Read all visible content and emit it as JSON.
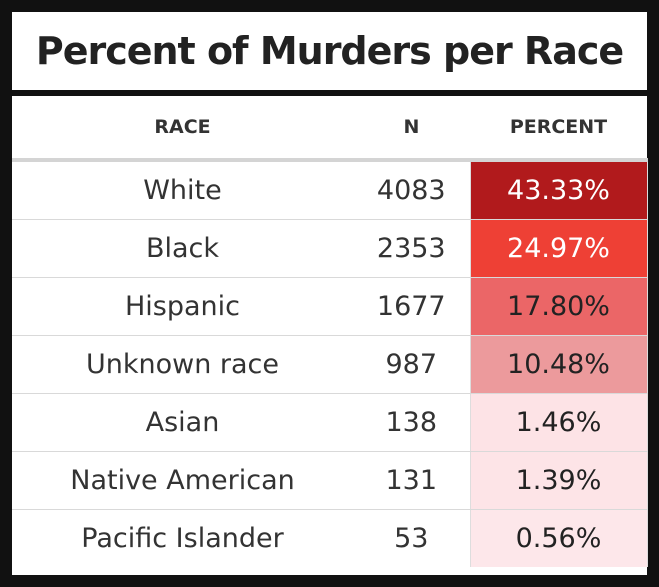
{
  "chart_data": {
    "type": "table",
    "title": "Percent of Murders per Race",
    "columns": [
      "RACE",
      "N",
      "PERCENT"
    ],
    "rows": [
      {
        "race": "White",
        "n": 4083,
        "percent": "43.33%",
        "percent_value": 43.33,
        "fill": "#b11a1c",
        "text_color": "#ffffff"
      },
      {
        "race": "Black",
        "n": 2353,
        "percent": "24.97%",
        "percent_value": 24.97,
        "fill": "#ee4035",
        "text_color": "#ffffff"
      },
      {
        "race": "Hispanic",
        "n": 1677,
        "percent": "17.80%",
        "percent_value": 17.8,
        "fill": "#eb6667",
        "text_color": "#222222"
      },
      {
        "race": "Unknown race",
        "n": 987,
        "percent": "10.48%",
        "percent_value": 10.48,
        "fill": "#ec9a9c",
        "text_color": "#222222"
      },
      {
        "race": "Asian",
        "n": 138,
        "percent": "1.46%",
        "percent_value": 1.46,
        "fill": "#fde3e6",
        "text_color": "#222222"
      },
      {
        "race": "Native American",
        "n": 131,
        "percent": "1.39%",
        "percent_value": 1.39,
        "fill": "#fde4e7",
        "text_color": "#222222"
      },
      {
        "race": "Pacific Islander",
        "n": 53,
        "percent": "0.56%",
        "percent_value": 0.56,
        "fill": "#fde7ea",
        "text_color": "#222222"
      }
    ]
  }
}
